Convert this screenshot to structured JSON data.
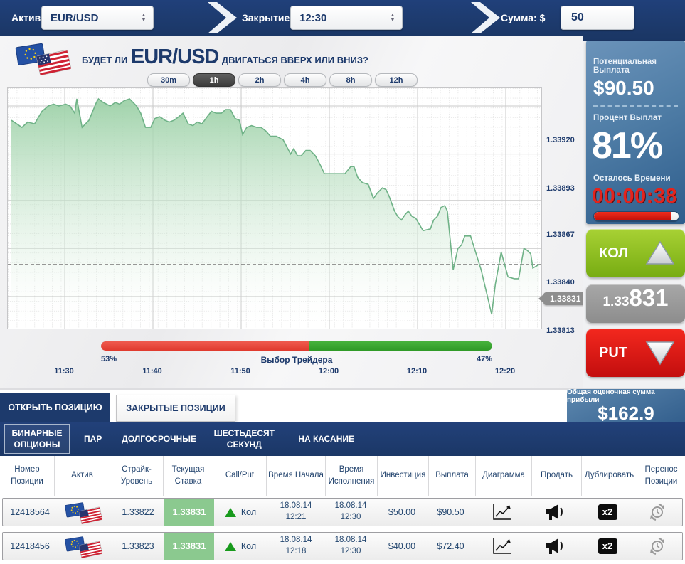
{
  "topbar": {
    "asset_label": "Актив:",
    "asset_value": "EUR/USD",
    "closing_label": "Закрытие:",
    "closing_value": "12:30",
    "amount_label": "Сумма: $",
    "amount_value": "50"
  },
  "question": {
    "prefix": "БУДЕТ ЛИ",
    "asset": "EUR/USD",
    "suffix": "ДВИГАТЬСЯ ВВЕРХ ИЛИ ВНИЗ?"
  },
  "timeframes": {
    "options": [
      "30m",
      "1h",
      "2h",
      "4h",
      "8h",
      "12h"
    ],
    "active": "1h"
  },
  "chart_data": {
    "type": "area",
    "title": "EUR/USD price",
    "y_ticks": [
      1.3392,
      1.33893,
      1.33867,
      1.3384,
      1.33813
    ],
    "x_ticks": [
      "11:30",
      "11:40",
      "11:50",
      "12:00",
      "12:10",
      "12:20"
    ],
    "current_price": 1.33831,
    "ylim": [
      1.33795,
      1.3393
    ],
    "grid": true,
    "line_color": "#6fb287",
    "points": [
      [
        0,
        1.33912
      ],
      [
        0.02,
        1.33908
      ],
      [
        0.031,
        1.33911
      ],
      [
        0.044,
        1.3391
      ],
      [
        0.058,
        1.33917
      ],
      [
        0.07,
        1.3392
      ],
      [
        0.08,
        1.33921
      ],
      [
        0.09,
        1.3392
      ],
      [
        0.103,
        1.33921
      ],
      [
        0.111,
        1.3392
      ],
      [
        0.12,
        1.33916
      ],
      [
        0.124,
        1.33924
      ],
      [
        0.134,
        1.33908
      ],
      [
        0.147,
        1.33912
      ],
      [
        0.161,
        1.33922
      ],
      [
        0.165,
        1.33924
      ],
      [
        0.174,
        1.33922
      ],
      [
        0.187,
        1.3392
      ],
      [
        0.197,
        1.33922
      ],
      [
        0.205,
        1.33921
      ],
      [
        0.214,
        1.33923
      ],
      [
        0.224,
        1.33924
      ],
      [
        0.237,
        1.3392
      ],
      [
        0.245,
        1.33916
      ],
      [
        0.254,
        1.33908
      ],
      [
        0.264,
        1.33908
      ],
      [
        0.272,
        1.33913
      ],
      [
        0.281,
        1.33914
      ],
      [
        0.291,
        1.33912
      ],
      [
        0.299,
        1.33911
      ],
      [
        0.308,
        1.33912
      ],
      [
        0.317,
        1.33914
      ],
      [
        0.325,
        1.33916
      ],
      [
        0.335,
        1.3391
      ],
      [
        0.344,
        1.33909
      ],
      [
        0.352,
        1.33911
      ],
      [
        0.361,
        1.3391
      ],
      [
        0.371,
        1.33914
      ],
      [
        0.379,
        1.33917
      ],
      [
        0.388,
        1.33916
      ],
      [
        0.398,
        1.33916
      ],
      [
        0.406,
        1.33918
      ],
      [
        0.415,
        1.33918
      ],
      [
        0.424,
        1.33913
      ],
      [
        0.432,
        1.33912
      ],
      [
        0.438,
        1.33904
      ],
      [
        0.446,
        1.33908
      ],
      [
        0.455,
        1.33909
      ],
      [
        0.465,
        1.33908
      ],
      [
        0.473,
        1.33908
      ],
      [
        0.482,
        1.33906
      ],
      [
        0.491,
        1.33903
      ],
      [
        0.502,
        1.33903
      ],
      [
        0.515,
        1.33901
      ],
      [
        0.529,
        1.33893
      ],
      [
        0.535,
        1.33896
      ],
      [
        0.542,
        1.33892
      ],
      [
        0.549,
        1.33892
      ],
      [
        0.558,
        1.33895
      ],
      [
        0.566,
        1.33895
      ],
      [
        0.576,
        1.33892
      ],
      [
        0.585,
        1.33887
      ],
      [
        0.593,
        1.33882
      ],
      [
        0.618,
        1.33882
      ],
      [
        0.632,
        1.33882
      ],
      [
        0.643,
        1.33886
      ],
      [
        0.649,
        1.33886
      ],
      [
        0.656,
        1.3388
      ],
      [
        0.665,
        1.33877
      ],
      [
        0.676,
        1.33876
      ],
      [
        0.686,
        1.33868
      ],
      [
        0.693,
        1.33871
      ],
      [
        0.703,
        1.33874
      ],
      [
        0.71,
        1.33873
      ],
      [
        0.716,
        1.33869
      ],
      [
        0.726,
        1.33861
      ],
      [
        0.732,
        1.33858
      ],
      [
        0.739,
        1.33856
      ],
      [
        0.746,
        1.33859
      ],
      [
        0.752,
        1.33861
      ],
      [
        0.759,
        1.33858
      ],
      [
        0.766,
        1.33857
      ],
      [
        0.774,
        1.33853
      ],
      [
        0.78,
        1.3385
      ],
      [
        0.794,
        1.33851
      ],
      [
        0.8,
        1.33856
      ],
      [
        0.807,
        1.33858
      ],
      [
        0.814,
        1.33863
      ],
      [
        0.821,
        1.33864
      ],
      [
        0.826,
        1.33861
      ],
      [
        0.837,
        1.33828
      ],
      [
        0.846,
        1.3384
      ],
      [
        0.853,
        1.33842
      ],
      [
        0.859,
        1.33847
      ],
      [
        0.87,
        1.33847
      ],
      [
        0.89,
        1.33828
      ],
      [
        0.91,
        1.33803
      ],
      [
        0.917,
        1.3382
      ],
      [
        0.928,
        1.33838
      ],
      [
        0.941,
        1.33824
      ],
      [
        0.953,
        1.33823
      ],
      [
        0.961,
        1.33823
      ],
      [
        0.971,
        1.3384
      ],
      [
        0.977,
        1.33839
      ],
      [
        0.984,
        1.33837
      ],
      [
        0.988,
        1.33829
      ],
      [
        1,
        1.33831
      ]
    ]
  },
  "trader_choice": {
    "label": "Выбор Трейдера",
    "put_pct": "53%",
    "call_pct": "47%",
    "put_value": 53
  },
  "sidebar": {
    "potential_payout_label": "Потенциальная Выплата",
    "potential_payout": "$90.50",
    "payout_percent_label": "Процент Выплат",
    "payout_percent": "81%",
    "time_left_label": "Осталось Времени",
    "time_left": "00:00:38",
    "time_progress": 92,
    "call_button": "КОЛ",
    "current_rate_small": "1.33",
    "current_rate_big": "831",
    "put_button": "PUT"
  },
  "positions": {
    "tab_open": "ОТКРЫТЬ ПОЗИЦИЮ",
    "tab_closed": "ЗАКРЫТЫЕ ПОЗИЦИИ",
    "profit_label": "Общая оценочная сумма прибыли",
    "profit_value": "$162.9",
    "subtabs": [
      "БИНАРНЫЕ ОПЦИОНЫ",
      "ПАР",
      "ДОЛГОСРОЧНЫЕ",
      "ШЕСТЬДЕСЯТ СЕКУНД",
      "НА КАСАНИЕ"
    ],
    "active_subtab": "БИНАРНЫЕ ОПЦИОНЫ"
  },
  "table": {
    "headers": [
      "Номер Позиции",
      "Актив",
      "Страйк- Уровень",
      "Текущая Ставка",
      "Call/Put",
      "Время Начала",
      "Время Исполнения",
      "Инвестиция",
      "Выплата",
      "Диаграмма",
      "Продать",
      "Дублировать",
      "Перенос Позиции"
    ],
    "rows": [
      {
        "position_id": "12418564",
        "asset": "EUR/USD",
        "strike": "1.33822",
        "current_rate": "1.33831",
        "direction": "Кол",
        "start_date": "18.08.14",
        "start_time": "12:21",
        "end_date": "18.08.14",
        "end_time": "12:30",
        "investment": "$50.00",
        "payout": "$90.50",
        "duplicate_label": "x2"
      },
      {
        "position_id": "12418456",
        "asset": "EUR/USD",
        "strike": "1.33823",
        "current_rate": "1.33831",
        "direction": "Кол",
        "start_date": "18.08.14",
        "start_time": "12:18",
        "end_date": "18.08.14",
        "end_time": "12:30",
        "investment": "$40.00",
        "payout": "$72.40",
        "duplicate_label": "x2"
      }
    ]
  },
  "colors": {
    "navy": "#1d3a6c",
    "call_green": "#8cc320",
    "put_red": "#e01818",
    "panel_blue": "#4f7da6",
    "choice_red": "#e03a2e",
    "choice_green": "#2f9a27",
    "timer_red": "#e3241d",
    "green_cell": "#8bc98f"
  }
}
